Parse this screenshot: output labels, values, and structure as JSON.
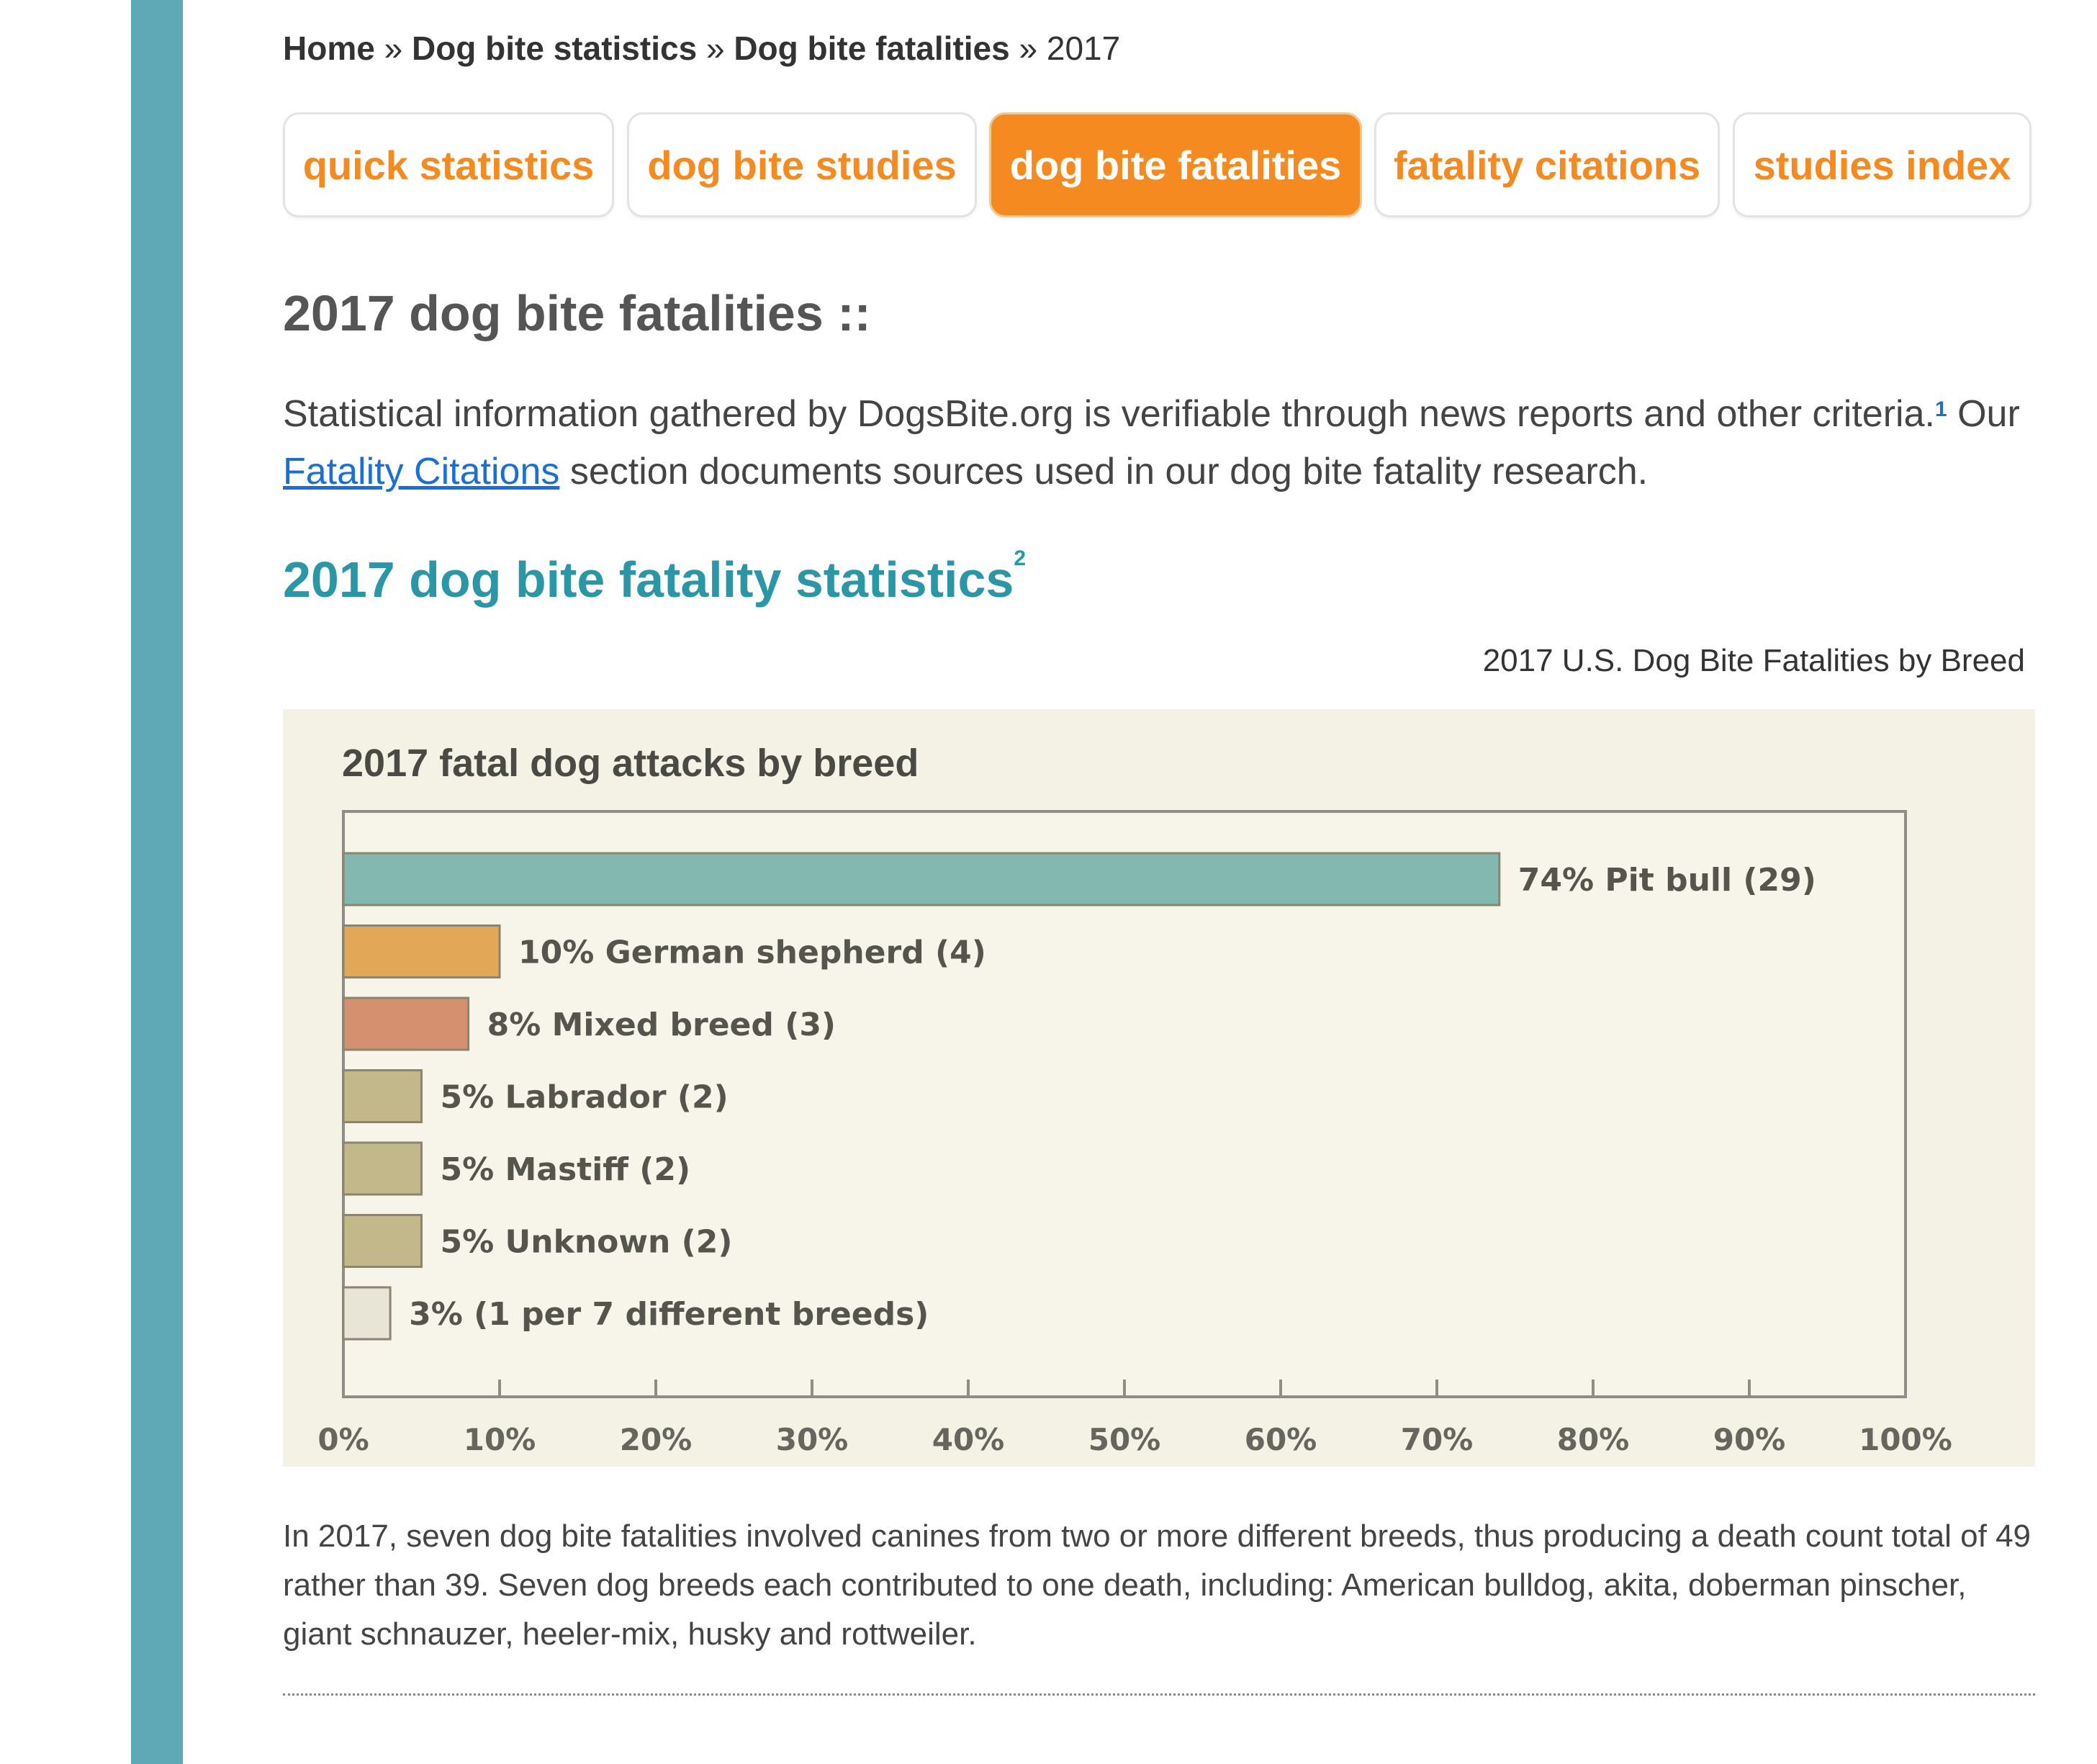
{
  "breadcrumb": {
    "items": [
      "Home",
      "Dog bite statistics",
      "Dog bite fatalities"
    ],
    "separator": "»",
    "current": "2017"
  },
  "tabs": [
    {
      "label": "quick statistics",
      "active": false
    },
    {
      "label": "dog bite studies",
      "active": false
    },
    {
      "label": "dog bite fatalities",
      "active": true
    },
    {
      "label": "fatality citations",
      "active": false
    },
    {
      "label": "studies index",
      "active": false
    }
  ],
  "page_title": "2017 dog bite fatalities ::",
  "intro": {
    "text_before": "Statistical information gathered by DogsBite.org is verifiable through news reports and other criteria.",
    "footnote_ref": "1",
    "text_mid": " Our ",
    "link_text": "Fatality Citations",
    "text_after": " section documents sources used in our dog bite fatality research."
  },
  "section_heading": {
    "text": "2017 dog bite fatality statistics",
    "footnote_ref": "2"
  },
  "chart_caption": "2017 U.S. Dog Bite Fatalities by Breed",
  "colors": {
    "accent_orange": "#f58a20",
    "heading_teal": "#2a96a6",
    "sidebar_teal": "#5fa8b5",
    "chart_bg": "#f4f2e5"
  },
  "chart_data": {
    "type": "bar",
    "orientation": "horizontal",
    "title": "2017 fatal dog attacks by breed",
    "xlim": [
      0,
      100
    ],
    "x_ticks": [
      "0%",
      "10%",
      "20%",
      "30%",
      "40%",
      "50%",
      "60%",
      "70%",
      "80%",
      "90%",
      "100%"
    ],
    "grid": false,
    "bars": [
      {
        "label": "74% Pit bull (29)",
        "value": 74,
        "color": "#83b8b0"
      },
      {
        "label": "10% German shepherd (4)",
        "value": 10,
        "color": "#e3a857"
      },
      {
        "label": "8% Mixed breed (3)",
        "value": 8,
        "color": "#d5906f"
      },
      {
        "label": "5% Labrador (2)",
        "value": 5,
        "color": "#c2b88a"
      },
      {
        "label": "5% Mastiff (2)",
        "value": 5,
        "color": "#c2b88a"
      },
      {
        "label": "5% Unknown (2)",
        "value": 5,
        "color": "#c2b88a"
      },
      {
        "label": "3% (1 per 7 different breeds)",
        "value": 3,
        "color": "#e8e5d6"
      }
    ]
  },
  "footnote_text": "In 2017, seven dog bite fatalities involved canines from two or more different breeds, thus producing a death count total of 49 rather than 39. Seven dog breeds each contributed to one death, including: American bulldog, akita, doberman pinscher, giant schnauzer, heeler-mix, husky and rottweiler."
}
